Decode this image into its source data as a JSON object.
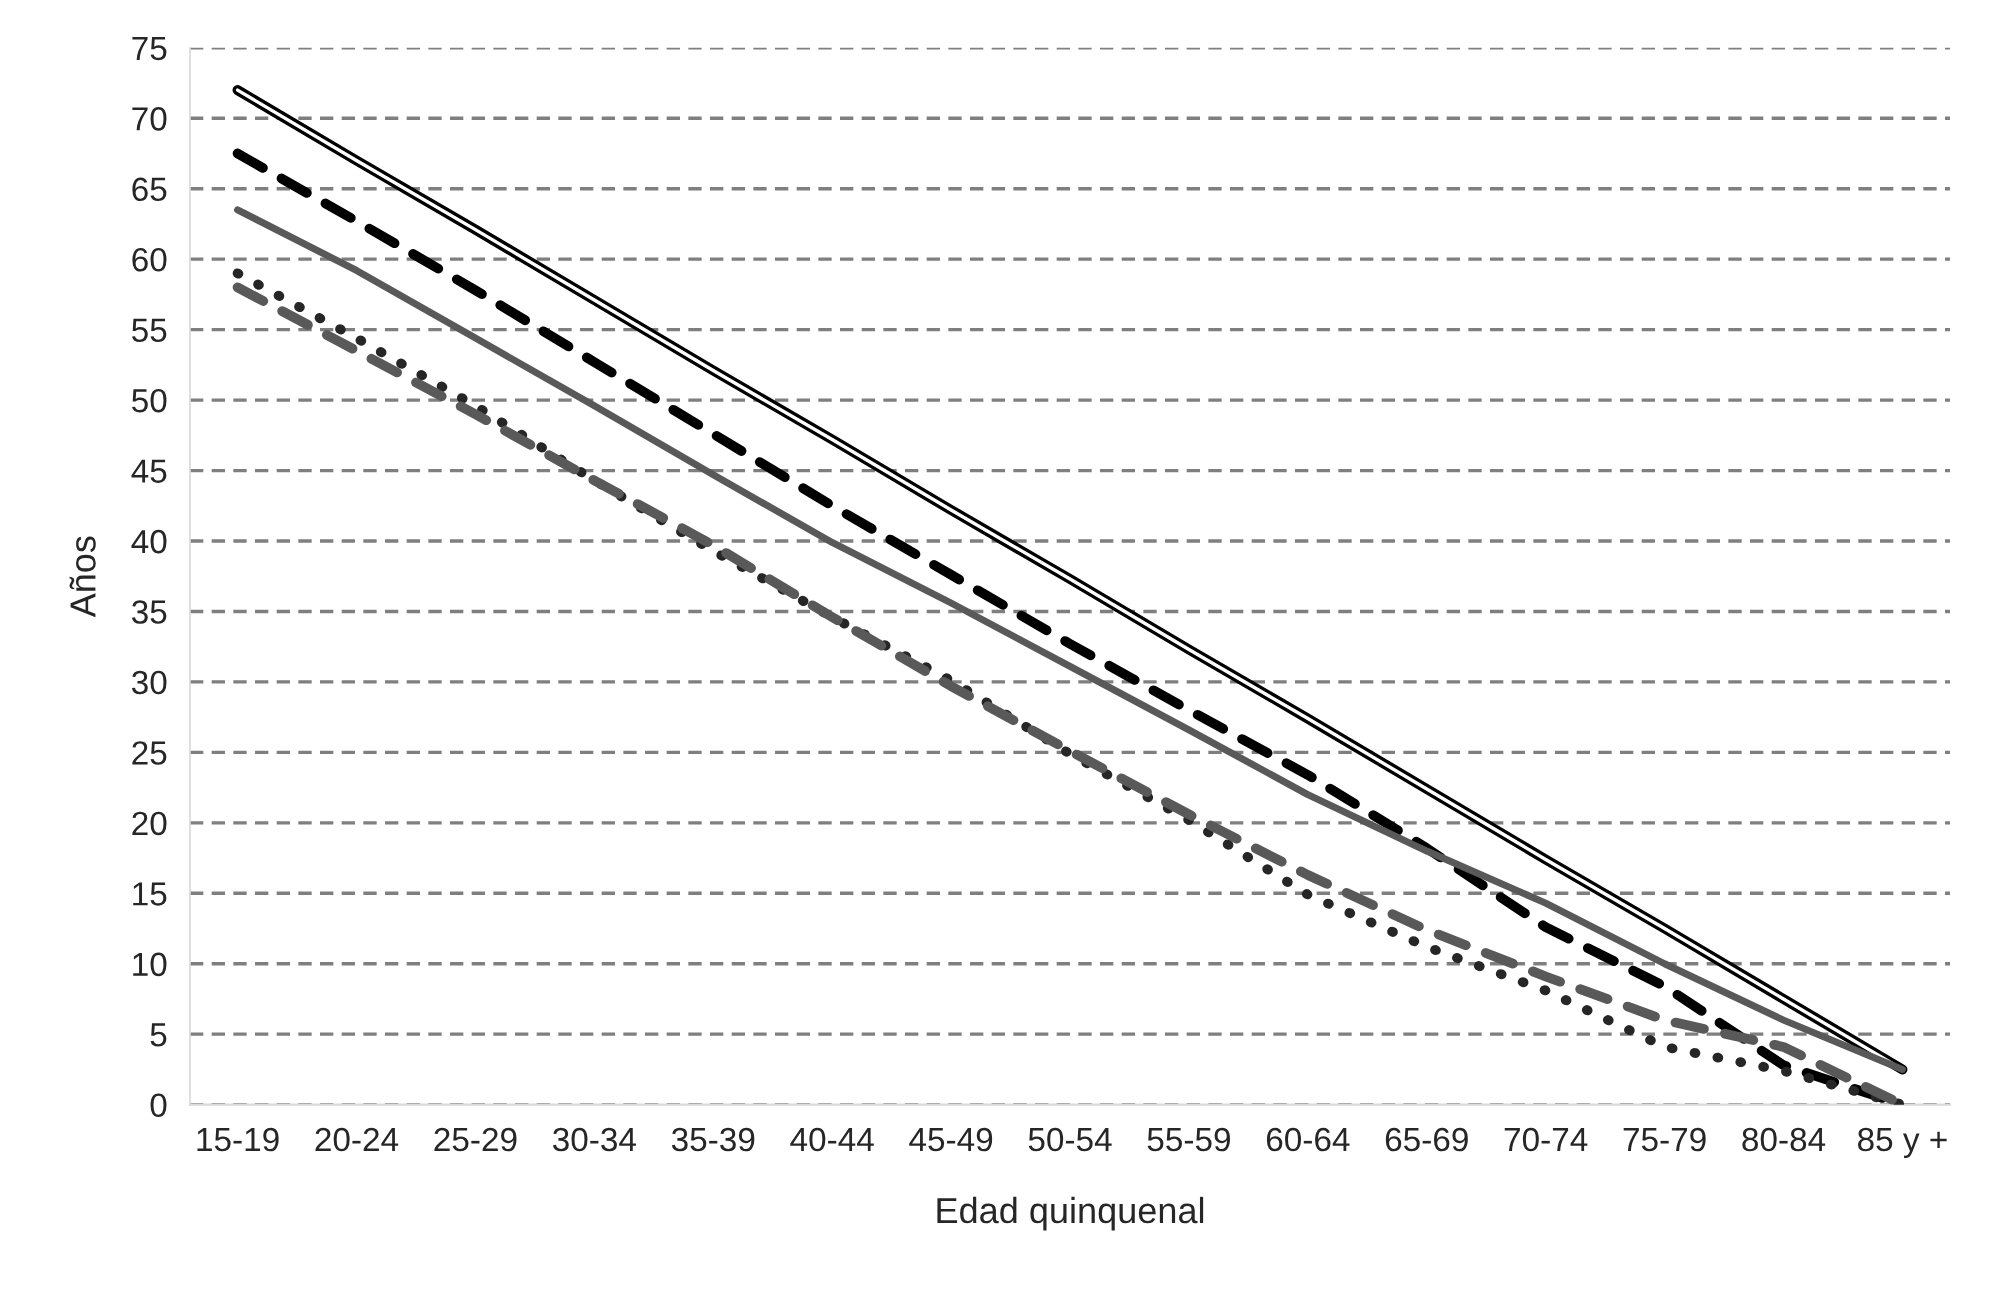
{
  "chart_data": {
    "type": "line",
    "xlabel": "Edad quinquenal",
    "ylabel": "Años",
    "categories": [
      "15-19",
      "20-24",
      "25-29",
      "30-34",
      "35-39",
      "40-44",
      "45-49",
      "50-54",
      "55-59",
      "60-64",
      "65-69",
      "70-74",
      "75-79",
      "80-84",
      "85 y +"
    ],
    "series": [
      {
        "color": "#000000",
        "line_style": "solid",
        "values": [
          72.0,
          67.0,
          62.1,
          57.1,
          52.1,
          47.2,
          42.2,
          37.3,
          32.3,
          27.4,
          22.4,
          17.4,
          12.5,
          7.5,
          2.5
        ]
      },
      {
        "color": "#000000",
        "line_style": "dashed",
        "values": [
          67.5,
          62.7,
          57.8,
          52.7,
          47.6,
          42.5,
          37.6,
          32.7,
          28.0,
          23.4,
          18.2,
          12.6,
          8.4,
          2.8,
          0.0
        ]
      },
      {
        "color": "#595959",
        "line_style": "solid",
        "values": [
          63.5,
          59.2,
          54.4,
          49.6,
          44.7,
          39.9,
          35.6,
          31.1,
          26.6,
          22.0,
          18.0,
          14.3,
          10.0,
          6.0,
          2.5
        ]
      },
      {
        "color": "#262626",
        "line_style": "dotted",
        "values": [
          59.0,
          54.4,
          49.6,
          44.3,
          39.3,
          34.6,
          30.1,
          24.9,
          20.2,
          14.9,
          11.2,
          8.1,
          4.1,
          2.4,
          0.0
        ]
      },
      {
        "color": "#595959",
        "line_style": "dashed",
        "values": [
          58.0,
          53.5,
          49.0,
          44.3,
          39.7,
          34.6,
          29.7,
          25.1,
          20.6,
          16.3,
          12.4,
          9.1,
          6.0,
          4.1,
          0.0
        ]
      }
    ],
    "ylim": [
      0,
      75
    ],
    "yticks": [
      0,
      5,
      10,
      15,
      20,
      25,
      30,
      35,
      40,
      45,
      50,
      55,
      60,
      65,
      70,
      75
    ],
    "grid": "y",
    "legend": false
  }
}
